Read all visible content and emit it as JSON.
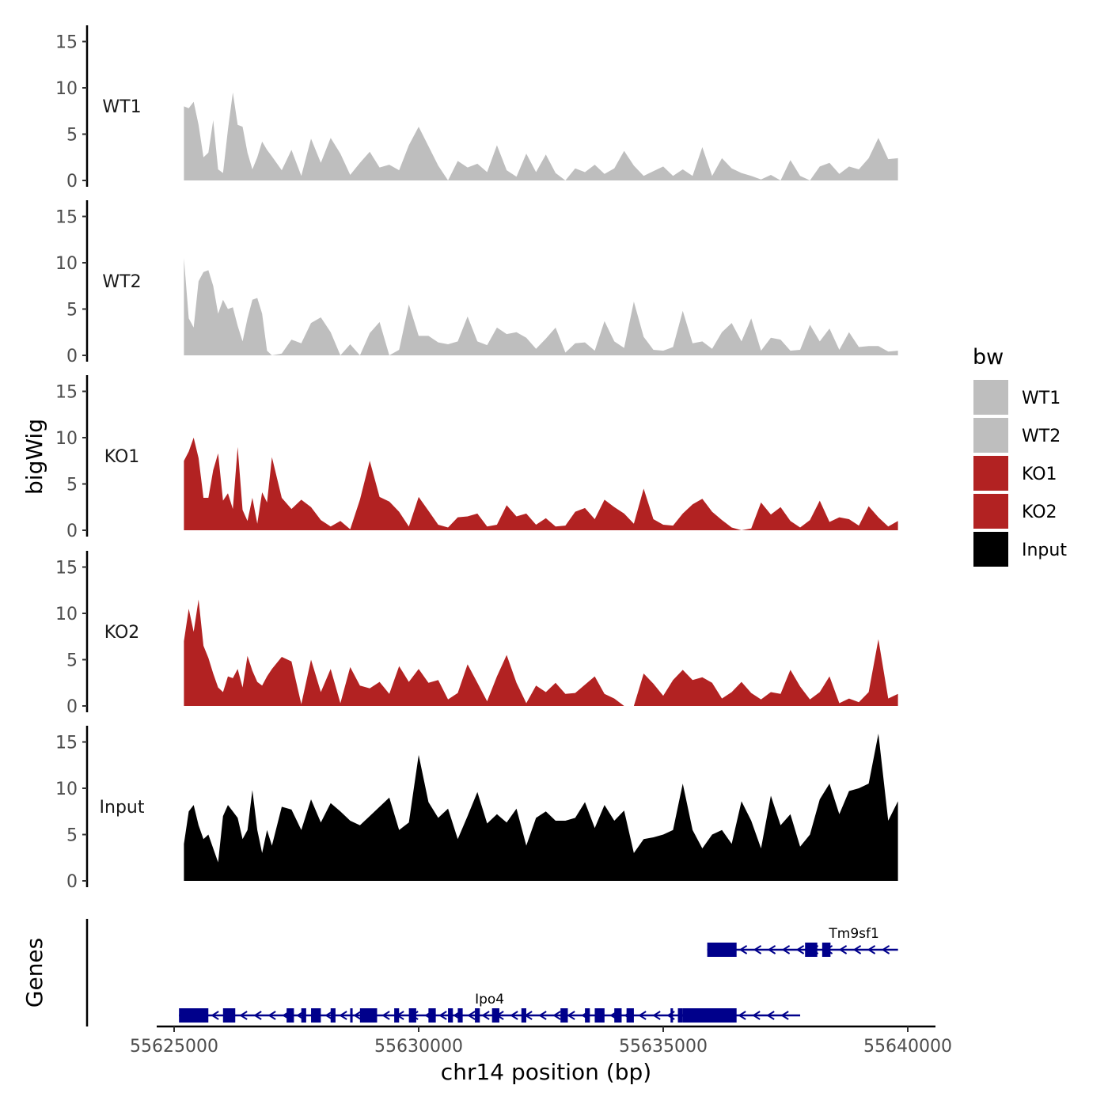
{
  "chart_data": {
    "type": "area",
    "chromosome": "chr14",
    "xlabel": "chr14 position (bp)",
    "ylabel_tracks": "bigWig",
    "ylabel_genes": "Genes",
    "xlim": [
      55624000,
      55641000
    ],
    "xticks": [
      55625000,
      55630000,
      55635000,
      55640000
    ],
    "xtick_labels": [
      "55625000",
      "55630000",
      "55635000",
      "55640000"
    ],
    "ylim": [
      0,
      16
    ],
    "yticks": [
      0,
      5,
      10,
      15
    ],
    "ytick_labels": [
      "0",
      "5",
      "10",
      "15"
    ],
    "legend": {
      "title": "bw",
      "entries": [
        {
          "label": "WT1",
          "color": "#bebebe"
        },
        {
          "label": "WT2",
          "color": "#bebebe"
        },
        {
          "label": "KO1",
          "color": "#b22222"
        },
        {
          "label": "KO2",
          "color": "#b22222"
        },
        {
          "label": "Input",
          "color": "#000000"
        }
      ]
    },
    "series": [
      {
        "name": "WT1",
        "color": "#bebebe",
        "x": [
          55625200,
          55625300,
          55625400,
          55625500,
          55625600,
          55625700,
          55625800,
          55625900,
          55626000,
          55626100,
          55626200,
          55626300,
          55626400,
          55626500,
          55626600,
          55626700,
          55626800,
          55626900,
          55627000,
          55627200,
          55627400,
          55627600,
          55627800,
          55628000,
          55628200,
          55628400,
          55628600,
          55628800,
          55629000,
          55629200,
          55629400,
          55629600,
          55629800,
          55630000,
          55630200,
          55630400,
          55630600,
          55630800,
          55631000,
          55631200,
          55631400,
          55631600,
          55631800,
          55632000,
          55632200,
          55632400,
          55632600,
          55632800,
          55633000,
          55633200,
          55633400,
          55633600,
          55633800,
          55634000,
          55634200,
          55634400,
          55634600,
          55634800,
          55635000,
          55635200,
          55635400,
          55635600,
          55635800,
          55636000,
          55636200,
          55636400,
          55636600,
          55636800,
          55637000,
          55637200,
          55637400,
          55637600,
          55637800,
          55638000,
          55638200,
          55638400,
          55638600,
          55638800,
          55639000,
          55639200,
          55639400,
          55639600,
          55639800
        ],
        "y": [
          8,
          7.8,
          8.5,
          6,
          2.5,
          3,
          6.5,
          1.2,
          0.8,
          5.5,
          9.5,
          6,
          5.8,
          3,
          1.2,
          2.5,
          4.2,
          3.3,
          2.6,
          1.1,
          3.3,
          0.5,
          4.5,
          1.9,
          4.6,
          2.9,
          0.6,
          1.9,
          3.1,
          1.4,
          1.7,
          1.1,
          3.8,
          5.8,
          3.7,
          1.6,
          0,
          2.1,
          1.4,
          1.8,
          0.9,
          3.8,
          1.1,
          0.4,
          2.9,
          0.9,
          2.8,
          0.8,
          0,
          1.3,
          0.9,
          1.7,
          0.7,
          1.3,
          3.2,
          1.6,
          0.5,
          1,
          1.5,
          0.5,
          1.2,
          0.5,
          3.6,
          0.5,
          2.4,
          1.3,
          0.8,
          0.5,
          0.1,
          0.6,
          0,
          2.2,
          0.5,
          0,
          1.5,
          1.9,
          0.7,
          1.5,
          1.2,
          2.4,
          4.6,
          2.3,
          2.4
        ]
      },
      {
        "name": "WT2",
        "color": "#bebebe",
        "x": [
          55625200,
          55625300,
          55625400,
          55625500,
          55625600,
          55625700,
          55625800,
          55625900,
          55626000,
          55626100,
          55626200,
          55626300,
          55626400,
          55626500,
          55626600,
          55626700,
          55626800,
          55626900,
          55627000,
          55627200,
          55627400,
          55627600,
          55627800,
          55628000,
          55628200,
          55628400,
          55628600,
          55628800,
          55629000,
          55629200,
          55629400,
          55629600,
          55629800,
          55630000,
          55630200,
          55630400,
          55630600,
          55630800,
          55631000,
          55631200,
          55631400,
          55631600,
          55631800,
          55632000,
          55632200,
          55632400,
          55632600,
          55632800,
          55633000,
          55633200,
          55633400,
          55633600,
          55633800,
          55634000,
          55634200,
          55634400,
          55634600,
          55634800,
          55635000,
          55635200,
          55635400,
          55635600,
          55635800,
          55636000,
          55636200,
          55636400,
          55636600,
          55636800,
          55637000,
          55637200,
          55637400,
          55637600,
          55637800,
          55638000,
          55638200,
          55638400,
          55638600,
          55638800,
          55639000,
          55639200,
          55639400,
          55639600,
          55639800
        ],
        "y": [
          10.5,
          4,
          3,
          8,
          9,
          9.2,
          7.5,
          4.5,
          6,
          5,
          5.2,
          3.2,
          1.5,
          4,
          6,
          6.2,
          4.5,
          0.5,
          0,
          0.2,
          1.7,
          1.3,
          3.5,
          4.1,
          2.5,
          0,
          1.2,
          0,
          2.4,
          3.6,
          0,
          0.6,
          5.5,
          2.1,
          2.1,
          1.4,
          1.2,
          1.5,
          4.2,
          1.5,
          1.1,
          3,
          2.3,
          2.5,
          1.9,
          0.7,
          1.8,
          3,
          0.3,
          1.3,
          1.4,
          0.5,
          3.7,
          1.5,
          0.8,
          5.8,
          2,
          0.6,
          0.5,
          0.9,
          4.8,
          1.3,
          1.5,
          0.7,
          2.5,
          3.5,
          1.5,
          4,
          0.5,
          1.9,
          1.7,
          0.5,
          0.6,
          3.3,
          1.5,
          2.9,
          0.6,
          2.5,
          0.9,
          1,
          1,
          0.4,
          0.5
        ]
      },
      {
        "name": "KO1",
        "color": "#b22222",
        "x": [
          55625200,
          55625300,
          55625400,
          55625500,
          55625600,
          55625700,
          55625800,
          55625900,
          55626000,
          55626100,
          55626200,
          55626300,
          55626400,
          55626500,
          55626600,
          55626700,
          55626800,
          55626900,
          55627000,
          55627200,
          55627400,
          55627600,
          55627800,
          55628000,
          55628200,
          55628400,
          55628600,
          55628800,
          55629000,
          55629200,
          55629400,
          55629600,
          55629800,
          55630000,
          55630200,
          55630400,
          55630600,
          55630800,
          55631000,
          55631200,
          55631400,
          55631600,
          55631800,
          55632000,
          55632200,
          55632400,
          55632600,
          55632800,
          55633000,
          55633200,
          55633400,
          55633600,
          55633800,
          55634000,
          55634200,
          55634400,
          55634600,
          55634800,
          55635000,
          55635200,
          55635400,
          55635600,
          55635800,
          55636000,
          55636200,
          55636400,
          55636600,
          55636800,
          55637000,
          55637200,
          55637400,
          55637600,
          55637800,
          55638000,
          55638200,
          55638400,
          55638600,
          55638800,
          55639000,
          55639200,
          55639400,
          55639600,
          55639800
        ],
        "y": [
          7.5,
          8.5,
          10,
          7.8,
          3.5,
          3.5,
          6.5,
          8.3,
          3.2,
          4,
          2.3,
          9,
          2.2,
          1,
          3.5,
          0.7,
          4.1,
          3,
          7.9,
          3.5,
          2.3,
          3.3,
          2.5,
          1.1,
          0.4,
          1,
          0.1,
          3.3,
          7.5,
          3.6,
          3.1,
          2,
          0.4,
          3.6,
          2.1,
          0.6,
          0.3,
          1.4,
          1.5,
          1.8,
          0.4,
          0.6,
          2.7,
          1.5,
          1.8,
          0.6,
          1.3,
          0.4,
          0.5,
          2,
          2.4,
          1.2,
          3.3,
          2.5,
          1.8,
          0.7,
          4.5,
          1.2,
          0.6,
          0.5,
          1.8,
          2.8,
          3.4,
          2,
          1.1,
          0.3,
          0,
          0.2,
          3,
          1.7,
          2.5,
          1,
          0.3,
          1.1,
          3.2,
          0.9,
          1.4,
          1.2,
          0.5,
          2.6,
          1.4,
          0.4,
          1
        ]
      },
      {
        "name": "KO2",
        "color": "#b22222",
        "x": [
          55625200,
          55625300,
          55625400,
          55625500,
          55625600,
          55625700,
          55625800,
          55625900,
          55626000,
          55626100,
          55626200,
          55626300,
          55626400,
          55626500,
          55626600,
          55626700,
          55626800,
          55626900,
          55627000,
          55627200,
          55627400,
          55627600,
          55627800,
          55628000,
          55628200,
          55628400,
          55628600,
          55628800,
          55629000,
          55629200,
          55629400,
          55629600,
          55629800,
          55630000,
          55630200,
          55630400,
          55630600,
          55630800,
          55631000,
          55631200,
          55631400,
          55631600,
          55631800,
          55632000,
          55632200,
          55632400,
          55632600,
          55632800,
          55633000,
          55633200,
          55633400,
          55633600,
          55633800,
          55634000,
          55634200,
          55634400,
          55634600,
          55634800,
          55635000,
          55635200,
          55635400,
          55635600,
          55635800,
          55636000,
          55636200,
          55636400,
          55636600,
          55636800,
          55637000,
          55637200,
          55637400,
          55637600,
          55637800,
          55638000,
          55638200,
          55638400,
          55638600,
          55638800,
          55639000,
          55639200,
          55639400,
          55639600,
          55639800
        ],
        "y": [
          7,
          10.5,
          8,
          11.5,
          6.5,
          5.2,
          3.5,
          2,
          1.5,
          3.2,
          3,
          4,
          2,
          5.4,
          3.8,
          2.6,
          2.2,
          3.2,
          4,
          5.3,
          4.8,
          0.2,
          5,
          1.5,
          4,
          0.3,
          4.2,
          2.2,
          1.9,
          2.6,
          1.3,
          4.3,
          2.6,
          4,
          2.5,
          2.8,
          0.7,
          1.4,
          4.5,
          2.5,
          0.5,
          3.2,
          5.5,
          2.5,
          0.3,
          2.2,
          1.5,
          2.5,
          1.3,
          1.4,
          2.3,
          3.2,
          1.3,
          0.8,
          0,
          0,
          3.5,
          2.4,
          1.1,
          2.8,
          3.9,
          2.8,
          3.1,
          2.5,
          0.8,
          1.5,
          2.6,
          1.4,
          0.7,
          1.5,
          1.3,
          3.9,
          2.1,
          0.7,
          1.5,
          3.2,
          0.3,
          0.8,
          0.4,
          1.5,
          7.2,
          0.8,
          1.3
        ]
      },
      {
        "name": "Input",
        "color": "#000000",
        "x": [
          55625200,
          55625300,
          55625400,
          55625500,
          55625600,
          55625700,
          55625800,
          55625900,
          55626000,
          55626100,
          55626200,
          55626300,
          55626400,
          55626500,
          55626600,
          55626700,
          55626800,
          55626900,
          55627000,
          55627200,
          55627400,
          55627600,
          55627800,
          55628000,
          55628200,
          55628400,
          55628600,
          55628800,
          55629000,
          55629200,
          55629400,
          55629600,
          55629800,
          55630000,
          55630200,
          55630400,
          55630600,
          55630800,
          55631000,
          55631200,
          55631400,
          55631600,
          55631800,
          55632000,
          55632200,
          55632400,
          55632600,
          55632800,
          55633000,
          55633200,
          55633400,
          55633600,
          55633800,
          55634000,
          55634200,
          55634400,
          55634600,
          55634800,
          55635000,
          55635200,
          55635400,
          55635600,
          55635800,
          55636000,
          55636200,
          55636400,
          55636600,
          55636800,
          55637000,
          55637200,
          55637400,
          55637600,
          55637800,
          55638000,
          55638200,
          55638400,
          55638600,
          55638800,
          55639000,
          55639200,
          55639400,
          55639600,
          55639800
        ],
        "y": [
          4,
          7.5,
          8.2,
          6,
          4.5,
          5,
          3.5,
          2,
          7,
          8.2,
          7.5,
          6.8,
          4.5,
          5.5,
          9.8,
          5.5,
          3,
          5.5,
          3.8,
          8,
          7.7,
          5.5,
          8.8,
          6.3,
          8.4,
          7.5,
          6.5,
          6,
          7,
          8,
          9,
          5.5,
          6.3,
          13.6,
          8.5,
          6.8,
          7.8,
          4.5,
          7,
          9.6,
          6.2,
          7.2,
          6.3,
          7.8,
          3.8,
          6.8,
          7.5,
          6.5,
          6.5,
          6.8,
          8.5,
          5.7,
          8.2,
          6.5,
          7.6,
          3,
          4.5,
          4.7,
          5,
          5.5,
          10.5,
          5.5,
          3.5,
          5,
          5.5,
          4,
          8.6,
          6.5,
          3.5,
          9.2,
          6,
          7.2,
          3.7,
          5,
          8.8,
          10.5,
          7.2,
          9.7,
          10,
          10.5,
          15.9,
          6.5,
          8.6
        ]
      }
    ],
    "genes": [
      {
        "name": "Tm9sf1",
        "strand": "-",
        "row": 1,
        "start": 55635900,
        "end": 55639800,
        "exons": [
          [
            55635900,
            55636500
          ],
          [
            55637900,
            55638150
          ],
          [
            55638250,
            55638420
          ]
        ]
      },
      {
        "name": "Ipo4",
        "strand": "-",
        "row": 2,
        "start": 55625100,
        "end": 55637800,
        "exons": [
          [
            55625100,
            55625700
          ],
          [
            55626000,
            55626250
          ],
          [
            55627300,
            55627450
          ],
          [
            55627600,
            55627700
          ],
          [
            55627800,
            55628000
          ],
          [
            55628200,
            55628300
          ],
          [
            55628600,
            55628650
          ],
          [
            55628800,
            55629150
          ],
          [
            55629500,
            55629600
          ],
          [
            55629800,
            55629950
          ],
          [
            55630200,
            55630350
          ],
          [
            55630600,
            55630700
          ],
          [
            55630800,
            55630900
          ],
          [
            55631150,
            55631250
          ],
          [
            55631500,
            55631650
          ],
          [
            55632100,
            55632200
          ],
          [
            55632900,
            55633050
          ],
          [
            55633400,
            55633500
          ],
          [
            55633600,
            55633800
          ],
          [
            55634000,
            55634150
          ],
          [
            55634250,
            55634400
          ],
          [
            55635150,
            55635200
          ],
          [
            55635300,
            55635400
          ],
          [
            55635400,
            55636500
          ]
        ]
      }
    ]
  }
}
